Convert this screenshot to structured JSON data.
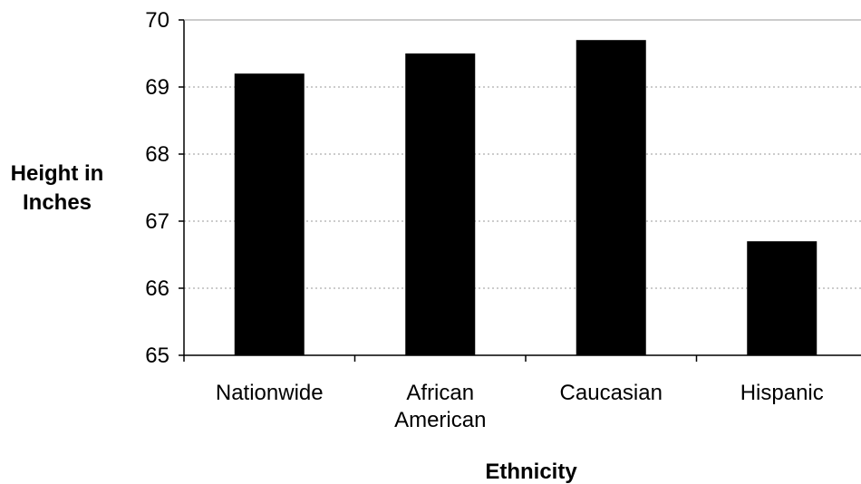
{
  "chart_data": {
    "type": "bar",
    "title": "",
    "xlabel": "Ethnicity",
    "ylabel": "Height in Inches",
    "ylabel_lines": [
      "Height in",
      "Inches"
    ],
    "categories": [
      "Nationwide",
      "African American",
      "Caucasian",
      "Hispanic"
    ],
    "category_lines": [
      [
        "Nationwide"
      ],
      [
        "African",
        "American"
      ],
      [
        "Caucasian"
      ],
      [
        "Hispanic"
      ]
    ],
    "values": [
      69.2,
      69.5,
      69.7,
      66.7
    ],
    "ylim": [
      65,
      70
    ],
    "yticks": [
      65,
      66,
      67,
      68,
      69,
      70
    ],
    "grid": true,
    "legend": "none",
    "colors": {
      "bar": "#000000",
      "axis": "#000000",
      "grid": "#9a9a9a"
    }
  }
}
